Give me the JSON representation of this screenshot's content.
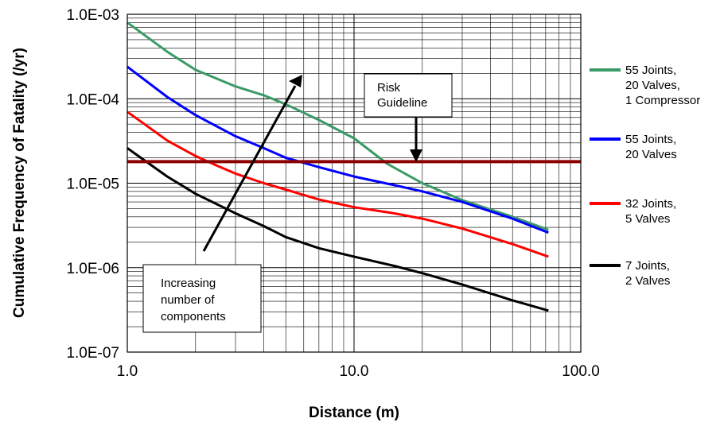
{
  "chart_data": {
    "type": "line",
    "xlabel": "Distance (m)",
    "ylabel": "Cumulative Frequency of Fatality (/yr)",
    "x_scale": "log",
    "y_scale": "log",
    "xlim": [
      1.0,
      100.0
    ],
    "ylim": [
      1e-07,
      0.001
    ],
    "grid": true,
    "x_tick_labels": [
      "1.0",
      "10.0",
      "100.0"
    ],
    "y_tick_labels": [
      "1.0E-03",
      "1.0E-04",
      "1.0E-05",
      "1.0E-06",
      "1.0E-07"
    ],
    "legend_position": "right",
    "series": [
      {
        "name": "55 Joints, 20 Valves, 1 Compressor",
        "legend_lines": [
          "55 Joints,",
          "20 Valves,",
          "1 Compressor"
        ],
        "color": "#3a9a66",
        "x": [
          1.0,
          1.5,
          2.0,
          3.0,
          4.0,
          5.0,
          7.0,
          10.0,
          14.0,
          20.0,
          30.0,
          50.0,
          72.0
        ],
        "y": [
          0.0008,
          0.00036,
          0.00022,
          0.00014,
          0.00011,
          8.6e-05,
          5.6e-05,
          3.4e-05,
          1.7e-05,
          1e-05,
          6.3e-06,
          4e-06,
          2.8e-06
        ]
      },
      {
        "name": "55 Joints, 20 Valves",
        "legend_lines": [
          "55 Joints,",
          "20 Valves"
        ],
        "color": "#0000ff",
        "x": [
          1.0,
          1.5,
          2.0,
          3.0,
          4.0,
          5.0,
          7.0,
          10.0,
          15.0,
          20.0,
          30.0,
          50.0,
          72.0
        ],
        "y": [
          0.00024,
          0.000105,
          6.4e-05,
          3.6e-05,
          2.6e-05,
          2e-05,
          1.55e-05,
          1.2e-05,
          9.5e-06,
          8e-06,
          6e-06,
          3.8e-06,
          2.6e-06
        ]
      },
      {
        "name": "32 Joints, 5 Valves",
        "legend_lines": [
          "32 Joints,",
          "5 Valves"
        ],
        "color": "#ff0000",
        "x": [
          1.0,
          1.5,
          2.0,
          2.5,
          3.0,
          4.0,
          5.0,
          7.0,
          10.0,
          15.0,
          20.0,
          30.0,
          50.0,
          72.0
        ],
        "y": [
          7e-05,
          3.2e-05,
          2.1e-05,
          1.6e-05,
          1.3e-05,
          1e-05,
          8.4e-06,
          6.4e-06,
          5.2e-06,
          4.4e-06,
          3.8e-06,
          2.9e-06,
          1.9e-06,
          1.35e-06
        ]
      },
      {
        "name": "7 Joints, 2 Valves",
        "legend_lines": [
          "7 Joints,",
          "2 Valves"
        ],
        "color": "#000000",
        "x": [
          1.0,
          1.5,
          2.0,
          3.0,
          4.0,
          5.0,
          7.0,
          10.0,
          15.0,
          20.0,
          30.0,
          50.0,
          72.0
        ],
        "y": [
          2.6e-05,
          1.2e-05,
          7.5e-06,
          4.4e-06,
          3.1e-06,
          2.3e-06,
          1.7e-06,
          1.35e-06,
          1.05e-06,
          8.6e-07,
          6.3e-07,
          4.1e-07,
          3.1e-07
        ]
      }
    ],
    "reference_lines": [
      {
        "label": "Risk Guideline",
        "label_lines": [
          "Risk",
          "Guideline"
        ],
        "y": 1.8e-05,
        "color": "#8b0000"
      }
    ],
    "annotations": [
      {
        "text": "Increasing number of components",
        "text_lines": [
          "Increasing",
          "number of",
          "components"
        ]
      }
    ]
  }
}
